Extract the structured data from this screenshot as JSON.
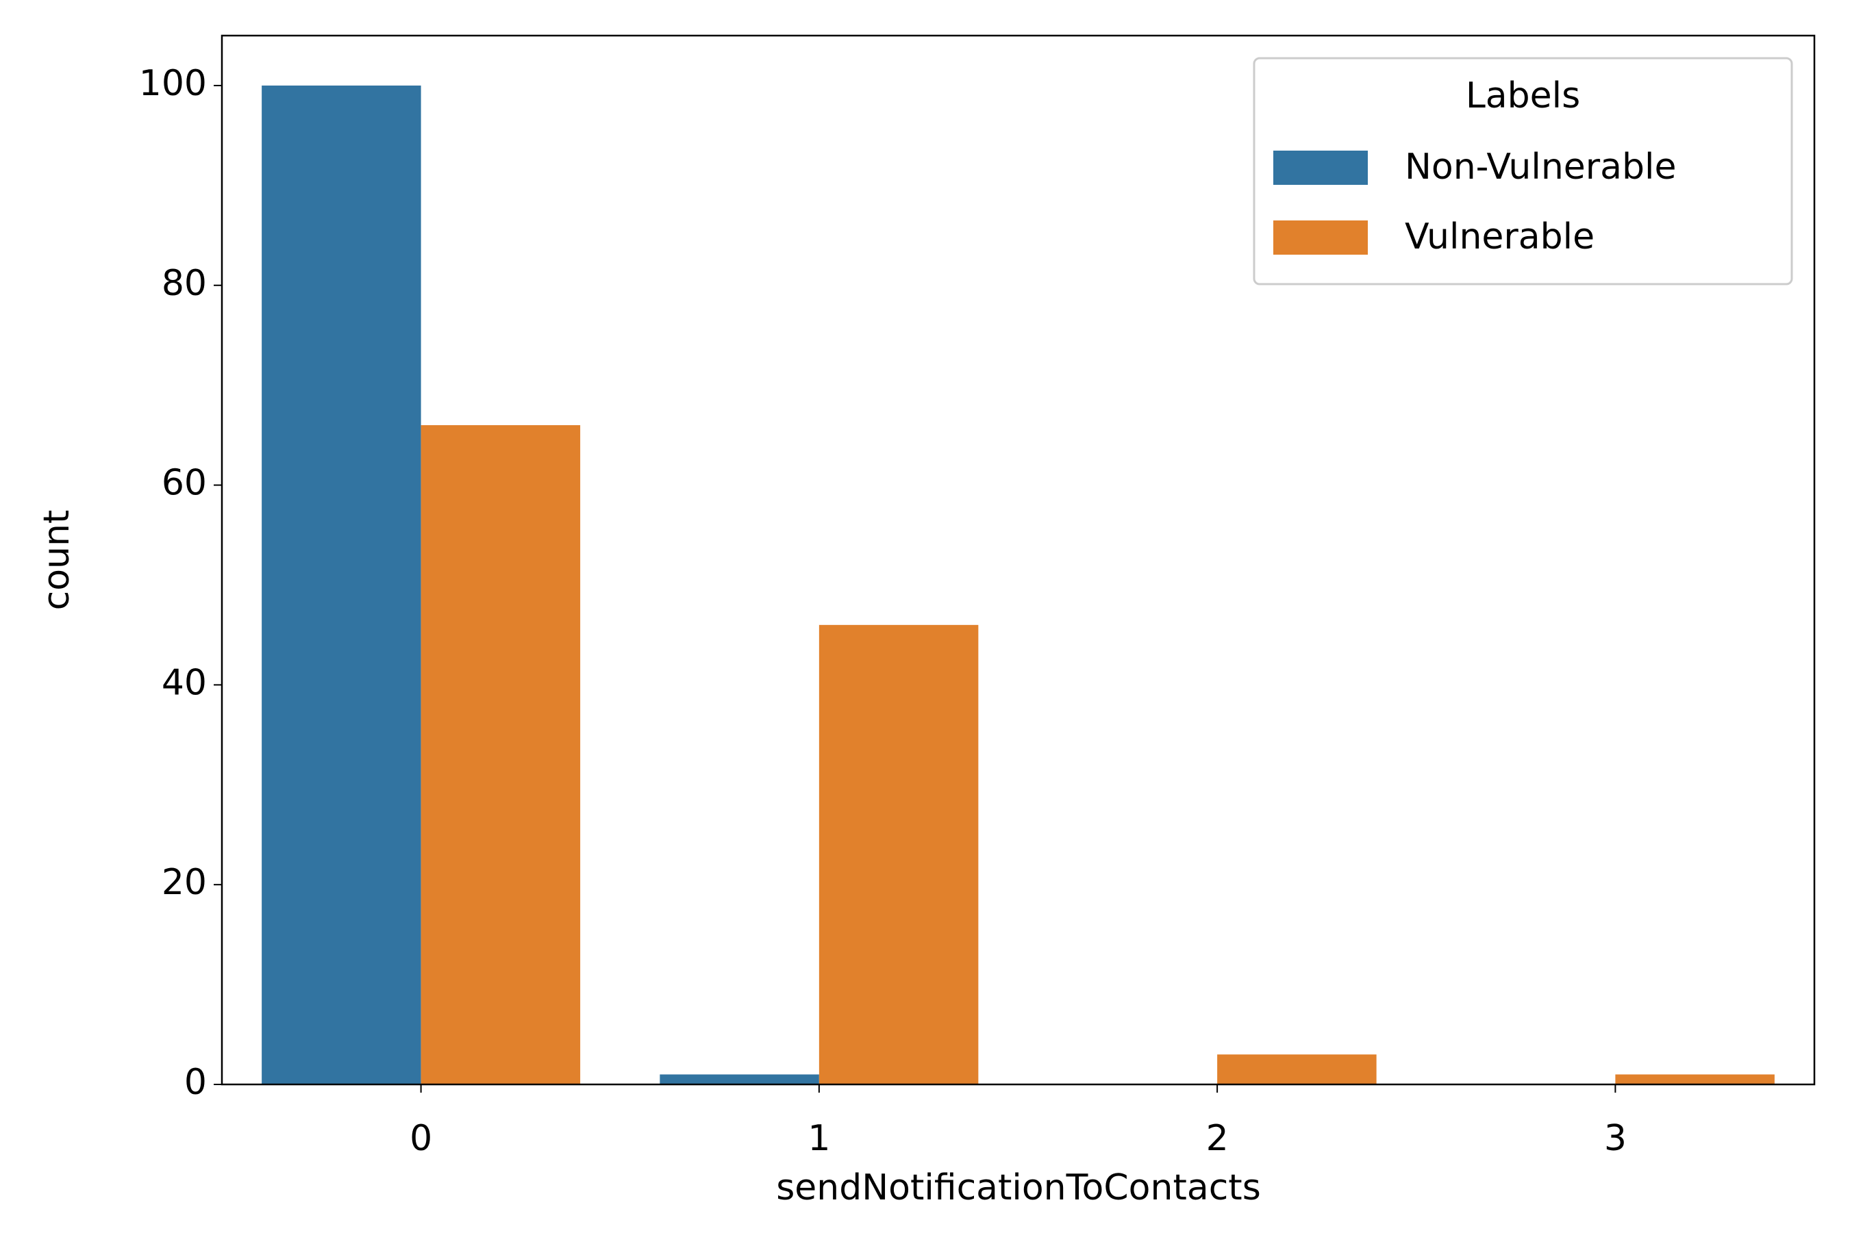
{
  "chart_data": {
    "type": "bar",
    "x_label": "sendNotificationToContacts",
    "y_label": "count",
    "categories": [
      "0",
      "1",
      "2",
      "3"
    ],
    "series": [
      {
        "name": "Non-Vulnerable",
        "color": "#3274a1",
        "values": [
          100,
          1,
          null,
          null
        ]
      },
      {
        "name": "Vulnerable",
        "color": "#e1812c",
        "values": [
          66,
          46,
          3,
          1
        ]
      }
    ],
    "ylim": [
      0,
      105
    ],
    "yticks": [
      0,
      20,
      40,
      60,
      80,
      100
    ],
    "legend_title": "Labels",
    "legend_position": "upper-right",
    "grid": false
  }
}
